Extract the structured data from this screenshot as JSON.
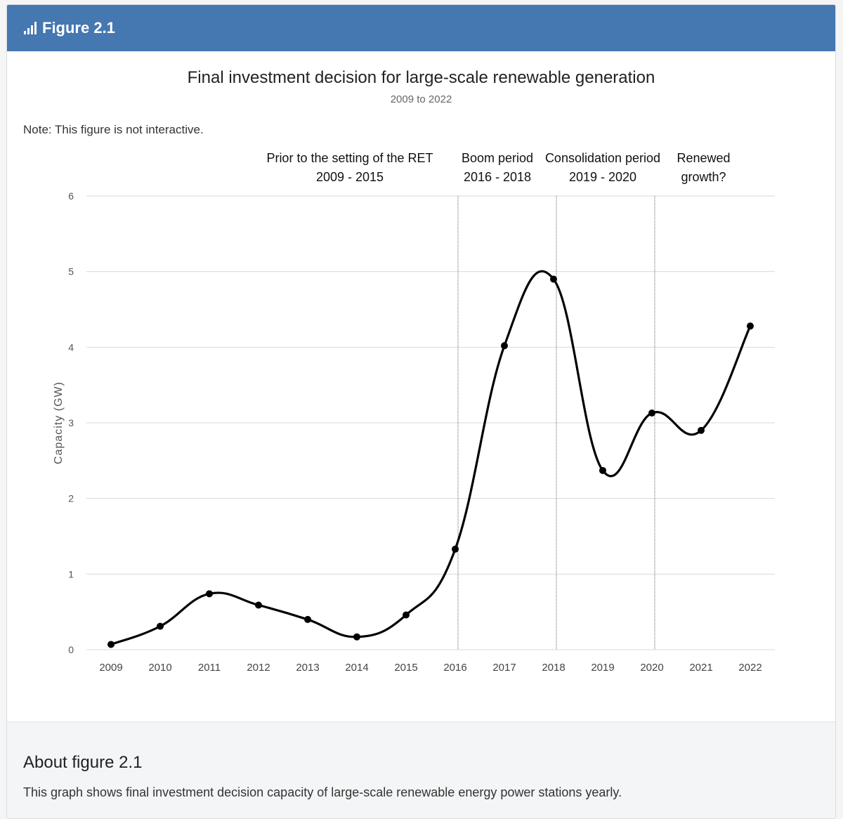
{
  "header": {
    "title": "Figure 2.1",
    "icon": "bar-chart-icon"
  },
  "note": "Note: This figure is not interactive.",
  "about": {
    "heading": "About figure 2.1",
    "text": "This graph shows final investment decision capacity of large-scale renewable energy power stations yearly."
  },
  "colors": {
    "header_bg": "#4577b0",
    "line": "#000000",
    "grid": "#d9d9d9"
  },
  "chart_data": {
    "type": "line",
    "title": "Final investment decision for large-scale renewable generation",
    "subtitle": "2009 to 2022",
    "xlabel": "",
    "ylabel": "Capacity (GW)",
    "ylim": [
      0,
      6
    ],
    "yticks": [
      0,
      1,
      2,
      3,
      4,
      5,
      6
    ],
    "grid": true,
    "smooth": true,
    "categories": [
      "2009",
      "2010",
      "2011",
      "2012",
      "2013",
      "2014",
      "2015",
      "2016",
      "2017",
      "2018",
      "2019",
      "2020",
      "2021",
      "2022"
    ],
    "series": [
      {
        "name": "",
        "values": [
          0.07,
          0.31,
          0.74,
          0.59,
          0.4,
          0.17,
          0.46,
          1.33,
          4.02,
          4.9,
          2.37,
          3.13,
          2.9,
          4.28
        ]
      }
    ],
    "period_dividers": [
      "2016",
      "2018",
      "2020"
    ],
    "periods": [
      {
        "lines": [
          "Prior to the setting of the RET",
          "2009 - 2015"
        ]
      },
      {
        "lines": [
          "Boom period",
          "2016 - 2018"
        ]
      },
      {
        "lines": [
          "Consolidation period",
          "2019 - 2020"
        ]
      },
      {
        "lines": [
          "Renewed",
          "growth?"
        ]
      }
    ]
  }
}
